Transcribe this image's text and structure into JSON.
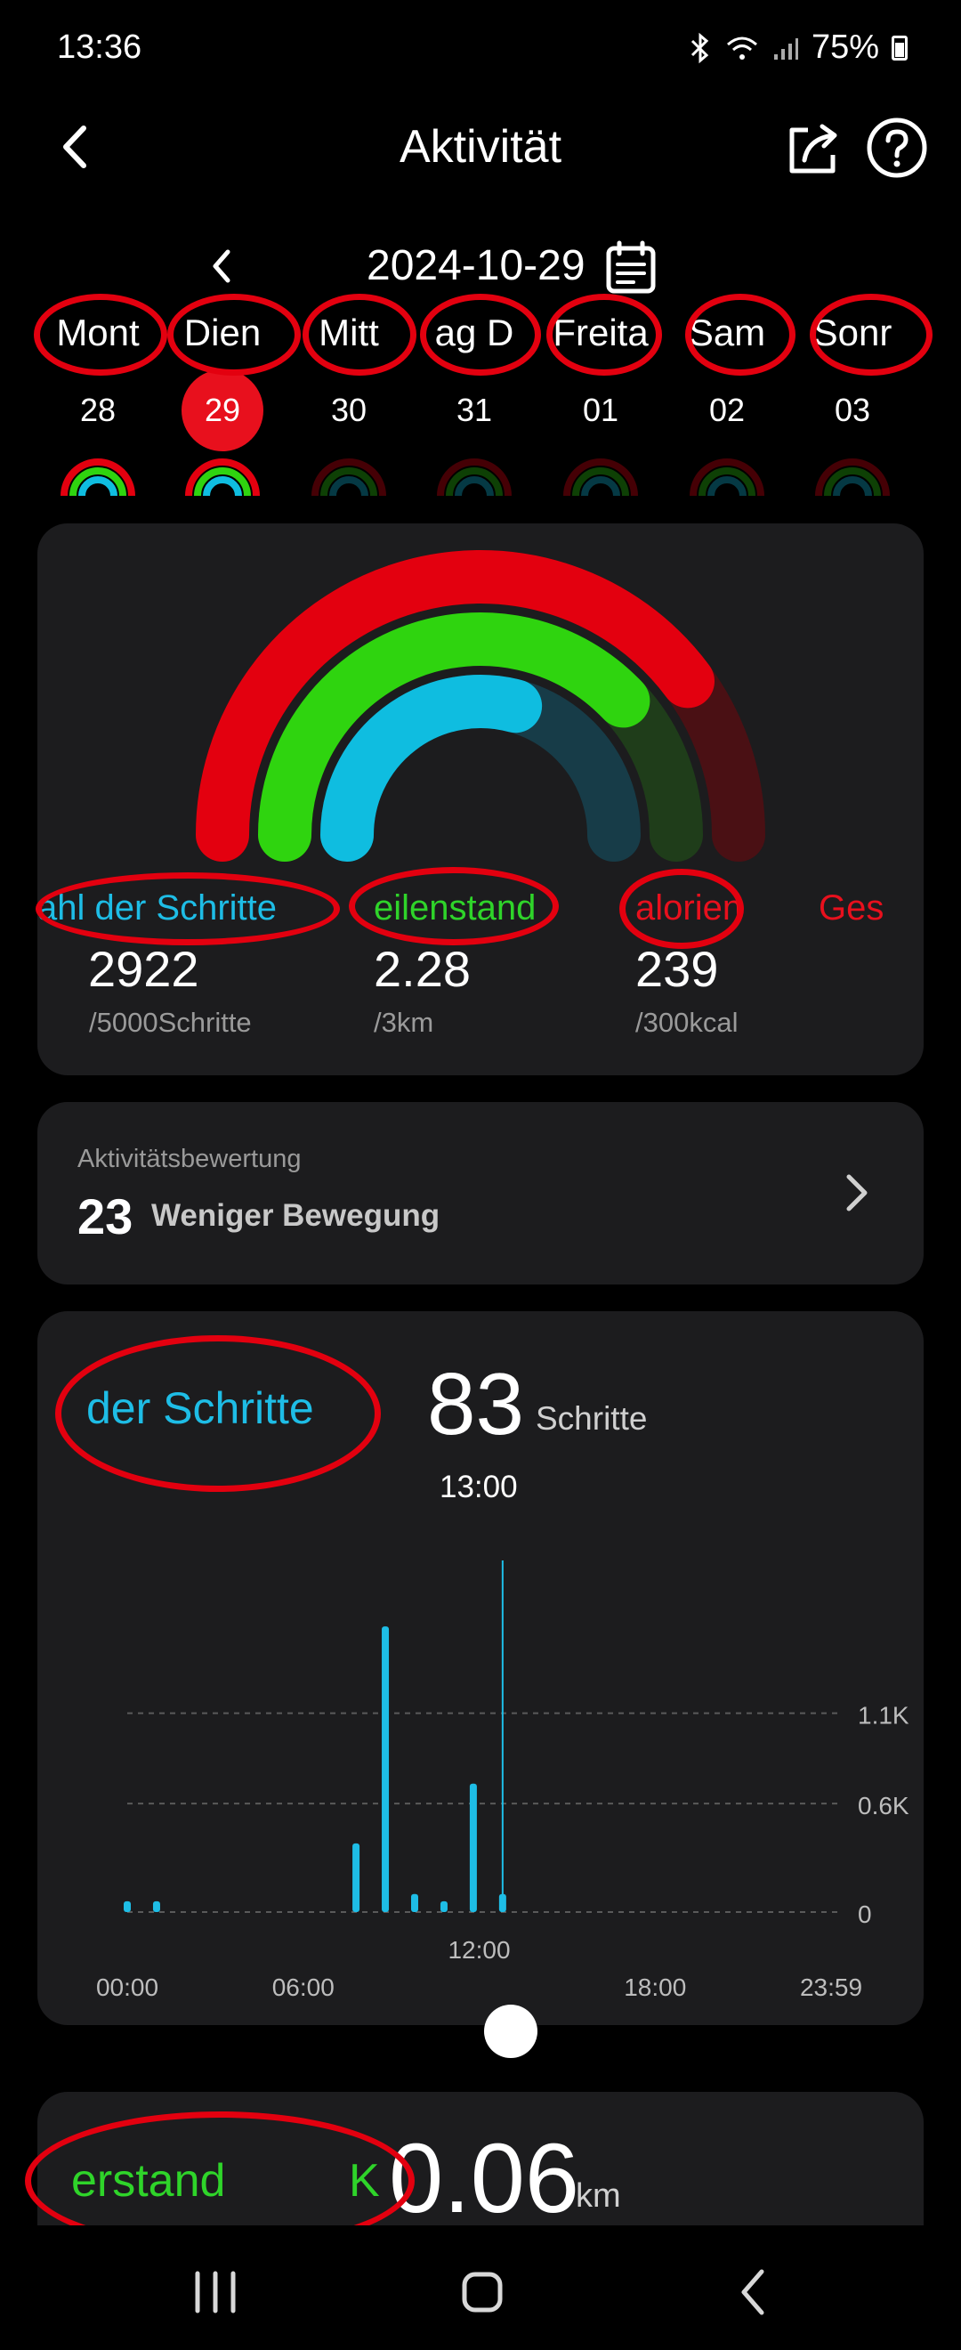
{
  "status": {
    "time": "13:36",
    "battery": "75%"
  },
  "header": {
    "title": "Aktivität"
  },
  "date": "2024-10-29",
  "week": [
    {
      "name": "Mont",
      "num": "28",
      "selected": false
    },
    {
      "name": "Dien",
      "num": "29",
      "selected": true
    },
    {
      "name": "Mitt",
      "num": "30",
      "selected": false
    },
    {
      "name": "ag  D",
      "num": "31",
      "selected": false
    },
    {
      "name": "Freita",
      "num": "01",
      "selected": false
    },
    {
      "name": "Sam",
      "num": "02",
      "selected": false
    },
    {
      "name": "Sonr",
      "num": "03",
      "selected": false
    }
  ],
  "rings": {
    "steps_progress": 0.584,
    "distance_progress": 0.76,
    "calories_progress": 0.797
  },
  "stats": {
    "steps": {
      "label": "ahl der Schritte",
      "value": "2922",
      "goal": "/5000Schritte"
    },
    "distance": {
      "label": "eilenstand",
      "value": "2.28",
      "goal": "/3km"
    },
    "calories": {
      "label": "alorien",
      "value": "239",
      "goal": "/300kcal"
    },
    "extra_label": "Ges"
  },
  "rating": {
    "label": "Aktivitätsbewertung",
    "score": "23",
    "text": "Weniger Bewegung"
  },
  "steps_card": {
    "title": "der Schritte",
    "value": "83",
    "unit": "Schritte",
    "time": "13:00",
    "scrubber_time": "12:00"
  },
  "distance_card": {
    "title": "erstand",
    "k": "K",
    "value": "0.06",
    "unit": "km"
  },
  "colors": {
    "red": "#e3000f",
    "green": "#2fd40f",
    "blue": "#0fbde0",
    "card": "#1c1c1e"
  },
  "chart_data": {
    "type": "bar",
    "x_labels": [
      "00:00",
      "06:00",
      "12:00",
      "18:00",
      "23:59"
    ],
    "y_ticks": [
      "0",
      "0.6K",
      "1.1K"
    ],
    "ylim": [
      0,
      1600
    ],
    "grid": true,
    "x_hours": [
      0.0,
      1.0,
      7.8,
      8.8,
      9.8,
      10.8,
      11.8,
      12.8
    ],
    "values": [
      60,
      60,
      380,
      1580,
      100,
      60,
      710,
      100
    ],
    "cursor_hour": 12.8
  }
}
